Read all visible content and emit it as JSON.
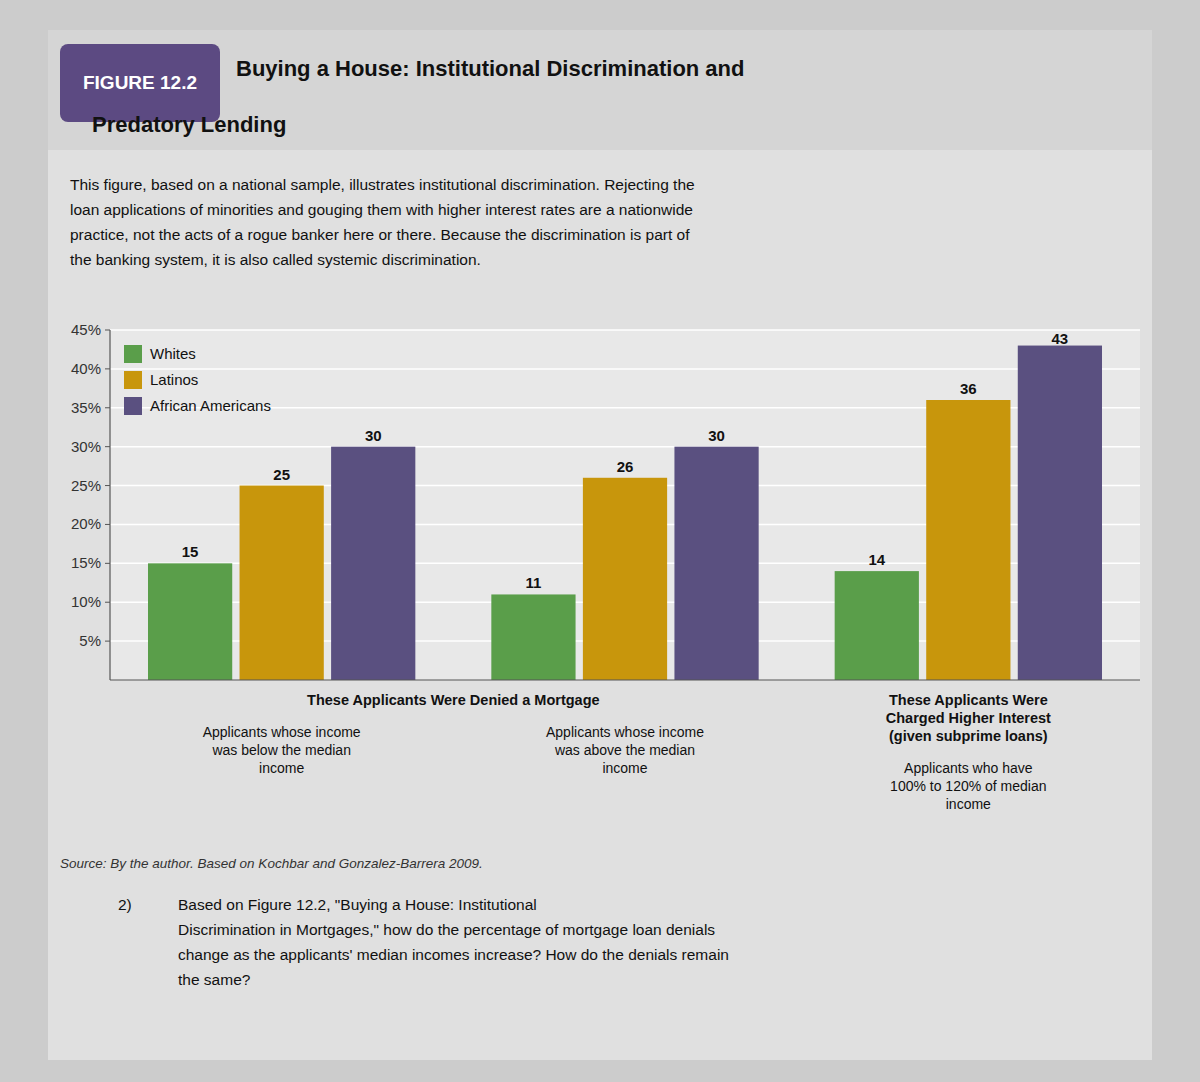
{
  "chart_data": {
    "type": "bar",
    "title": "Buying a House: Institutional Discrimination and\nPredatory Lending",
    "subtitle": "This figure, based on a national sample, illustrates institutional discrimination. Rejecting the\nloan applications of minorities and gouging them with higher interest rates are a nationwide\npractice, not the acts of a rogue banker here or there. Because the discrimination is part of\nthe banking system, it is also called systemic discrimination.",
    "annotations": [
      "FIGURE 12.2",
      "These Applicants Were Denied a Mortgage",
      "These Applicants Were\nCharged Higher Interest\n(given subprime loans)",
      "Source: By the author. Based on Kochbar and Gonzalez-Barrera 2009.",
      "2)",
      "Based on Figure 12.2, \"Buying a House: Institutional\nDiscrimination in Mortgages,\" how do the percentage of mortgage loan denials\nchange as the applicants' median incomes increase? How do the denials remain\nthe same?"
    ],
    "categories": [
      "Applicants whose income\nwas below the median\nincome",
      "Applicants whose income\nwas above the median\nincome",
      "Applicants who have\n100% to 120% of median\nincome"
    ],
    "series": [
      {
        "name": "Whites",
        "color": "#5a9e4a",
        "values": [
          15,
          11,
          14
        ]
      },
      {
        "name": "Latinos",
        "color": "#c8960c",
        "values": [
          25,
          26,
          36
        ]
      },
      {
        "name": "African Americans",
        "color": "#5a5080",
        "values": [
          30,
          30,
          43
        ]
      }
    ],
    "ylim": [
      0,
      45
    ],
    "yticks": [
      {
        "value": 5,
        "label": "5%"
      },
      {
        "value": 10,
        "label": "10%"
      },
      {
        "value": 15,
        "label": "15%"
      },
      {
        "value": 20,
        "label": "20%"
      },
      {
        "value": 25,
        "label": "25%"
      },
      {
        "value": 30,
        "label": "30%"
      },
      {
        "value": 35,
        "label": "35%"
      },
      {
        "value": 40,
        "label": "40%"
      },
      {
        "value": 45,
        "label": "45%"
      }
    ],
    "grid": true,
    "legend": "upper left",
    "data_labels": true
  }
}
